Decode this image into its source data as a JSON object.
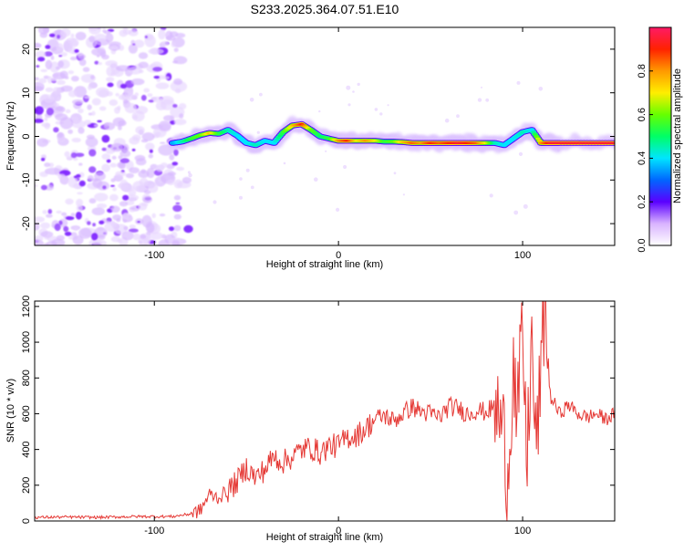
{
  "title": "S233.2025.364.07.51.E10",
  "chart_data": [
    {
      "type": "heatmap",
      "name": "spectrogram",
      "xlabel": "Height of straight line (km)",
      "ylabel": "Frequency (Hz)",
      "xlim": [
        -165,
        150
      ],
      "ylim": [
        -25,
        25
      ],
      "xticks": [
        -100,
        0,
        100
      ],
      "xtick_labels": [
        "-100",
        "0",
        "100"
      ],
      "yticks": [
        -20,
        -10,
        0,
        10,
        20
      ],
      "ytick_labels": [
        "-20",
        "-10",
        "0",
        "10",
        "20"
      ],
      "noise_region_x": [
        -165,
        -82
      ],
      "ridge": {
        "x": [
          -90,
          -85,
          -80,
          -75,
          -70,
          -65,
          -60,
          -55,
          -50,
          -45,
          -40,
          -35,
          -30,
          -25,
          -20,
          -15,
          -10,
          -5,
          0,
          5,
          10,
          15,
          20,
          25,
          30,
          35,
          40,
          45,
          50,
          55,
          60,
          65,
          70,
          75,
          80,
          85,
          90,
          95,
          100,
          105,
          110,
          115,
          120,
          130,
          140,
          150
        ],
        "y": [
          -1.5,
          -1.2,
          -0.5,
          0.3,
          0.8,
          0.6,
          1.5,
          0.2,
          -1.5,
          -2.0,
          -1.0,
          -1.5,
          1.0,
          2.5,
          2.8,
          1.5,
          0.0,
          -0.5,
          -1.0,
          -1.0,
          -1.0,
          -1.0,
          -1.0,
          -1.2,
          -1.2,
          -1.3,
          -1.5,
          -1.5,
          -1.5,
          -1.5,
          -1.5,
          -1.5,
          -1.5,
          -1.5,
          -1.5,
          -1.5,
          -2.0,
          -0.5,
          1.0,
          1.5,
          -1.5,
          -1.5,
          -1.5,
          -1.5,
          -1.5,
          -1.5
        ],
        "amplitude": [
          0.35,
          0.45,
          0.55,
          0.6,
          0.75,
          0.55,
          0.45,
          0.4,
          0.4,
          0.45,
          0.4,
          0.4,
          0.55,
          0.75,
          0.9,
          0.6,
          0.5,
          0.55,
          0.8,
          0.9,
          0.7,
          0.8,
          0.7,
          0.55,
          0.6,
          0.75,
          0.85,
          0.8,
          0.9,
          0.85,
          0.9,
          0.95,
          0.9,
          0.85,
          0.7,
          0.45,
          0.4,
          0.4,
          0.45,
          0.4,
          0.8,
          0.95,
          0.95,
          0.95,
          0.95,
          0.95
        ]
      }
    },
    {
      "type": "colorbar",
      "name": "colorbar",
      "label": "Normalized spectral amplitude",
      "range": [
        0,
        1
      ],
      "ticks": [
        0.0,
        0.2,
        0.4,
        0.6,
        0.8
      ],
      "tick_labels": [
        "0.0",
        "0.2",
        "0.4",
        "0.6",
        "0.8"
      ]
    },
    {
      "type": "line",
      "name": "snr",
      "xlabel": "Height of straight line (km)",
      "ylabel": "SNR (10 * v/v)",
      "xlim": [
        -165,
        150
      ],
      "ylim": [
        0,
        1230
      ],
      "xticks": [
        -100,
        0,
        100
      ],
      "xtick_labels": [
        "-100",
        "0",
        "100"
      ],
      "yticks": [
        0,
        200,
        400,
        600,
        800,
        1000,
        1200
      ],
      "ytick_labels": [
        "0",
        "200",
        "400",
        "600",
        "800",
        "1000",
        "1200"
      ],
      "series": [
        {
          "name": "SNR",
          "color": "#e53935",
          "x": [
            -165,
            -150,
            -130,
            -110,
            -90,
            -80,
            -75,
            -70,
            -65,
            -60,
            -55,
            -50,
            -45,
            -40,
            -35,
            -30,
            -25,
            -20,
            -15,
            -10,
            -5,
            0,
            5,
            10,
            15,
            20,
            25,
            30,
            35,
            40,
            45,
            50,
            55,
            60,
            65,
            70,
            75,
            80,
            85,
            88,
            90,
            92,
            95,
            97,
            100,
            102,
            105,
            107,
            110,
            112,
            115,
            120,
            125,
            130,
            135,
            140,
            145,
            150
          ],
          "y": [
            20,
            22,
            20,
            25,
            25,
            40,
            60,
            150,
            130,
            170,
            220,
            300,
            240,
            290,
            360,
            330,
            360,
            400,
            410,
            380,
            420,
            420,
            470,
            480,
            520,
            570,
            590,
            560,
            600,
            640,
            610,
            600,
            580,
            640,
            630,
            600,
            620,
            610,
            640,
            560,
            450,
            250,
            900,
            500,
            1100,
            300,
            1000,
            400,
            800,
            1250,
            700,
            600,
            650,
            600,
            580,
            600,
            570,
            600
          ]
        }
      ]
    }
  ]
}
